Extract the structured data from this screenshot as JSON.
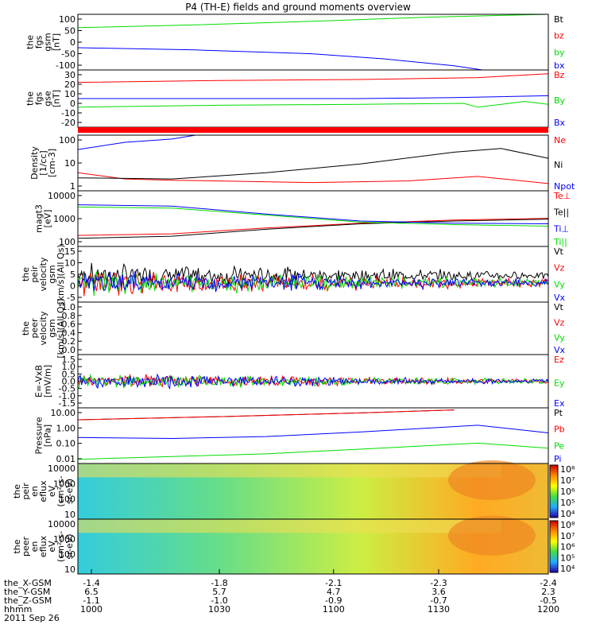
{
  "title": "P4 (TH-E) fields and ground moments overview",
  "date_label": "2011 Sep 26",
  "colors": {
    "black": "#000000",
    "red": "#ff0000",
    "green": "#00dd00",
    "blue": "#0000ff"
  },
  "chart_data": [
    {
      "type": "line",
      "id": "fgs_gsm",
      "ylabel": [
        "the",
        "fgs",
        "gsm",
        "[nT]"
      ],
      "yticks": [
        "100",
        "50",
        "0",
        "-50",
        "-100"
      ],
      "ylim": [
        -100,
        100
      ],
      "series": [
        {
          "name": "Bt",
          "color": "black",
          "values": []
        },
        {
          "name": "bz",
          "color": "red",
          "values": [
            [
              0,
              100
            ],
            [
              1,
              100
            ]
          ]
        },
        {
          "name": "by",
          "color": "green",
          "values": [
            [
              0,
              52
            ],
            [
              0.25,
              62
            ],
            [
              0.5,
              75
            ],
            [
              0.75,
              90
            ],
            [
              1,
              102
            ]
          ]
        },
        {
          "name": "bx",
          "color": "blue",
          "values": [
            [
              0,
              -20
            ],
            [
              0.25,
              -28
            ],
            [
              0.5,
              -42
            ],
            [
              0.65,
              -60
            ],
            [
              0.8,
              -85
            ],
            [
              0.86,
              -100
            ]
          ]
        }
      ]
    },
    {
      "type": "line",
      "id": "fgs_gse",
      "ylabel": [
        "the",
        "fgs",
        "gse",
        "[nT]"
      ],
      "yticks": [
        "30",
        "20",
        "10",
        "0",
        "-10",
        "-20"
      ],
      "ylim": [
        -30,
        30
      ],
      "series": [
        {
          "name": "Bz",
          "color": "red",
          "values": [
            [
              0,
              17
            ],
            [
              0.3,
              19
            ],
            [
              0.6,
              20
            ],
            [
              0.85,
              22
            ],
            [
              1,
              26
            ]
          ]
        },
        {
          "name": "By",
          "color": "green",
          "values": [
            [
              0,
              -9
            ],
            [
              0.3,
              -7
            ],
            [
              0.6,
              -6
            ],
            [
              0.82,
              -5
            ],
            [
              0.85,
              -9
            ],
            [
              0.95,
              -3
            ],
            [
              1,
              -6
            ]
          ]
        },
        {
          "name": "Bx",
          "color": "blue",
          "values": [
            [
              0,
              0
            ],
            [
              0.3,
              0
            ],
            [
              0.6,
              0
            ],
            [
              0.8,
              1
            ],
            [
              1,
              3
            ]
          ]
        }
      ]
    },
    {
      "type": "line",
      "id": "density",
      "yscale": "log",
      "ylabel": [
        "Density",
        "[1/cc]",
        "[cm-3]"
      ],
      "yticks": [
        "100",
        "10",
        "1"
      ],
      "ylim": [
        0.4,
        200
      ],
      "series": [
        {
          "name": "Ne",
          "color": "red",
          "values": [
            [
              0,
              3
            ],
            [
              0.1,
              1.5
            ],
            [
              0.2,
              1.3
            ],
            [
              0.3,
              1.2
            ],
            [
              0.5,
              1
            ],
            [
              0.7,
              1.2
            ],
            [
              0.85,
              2
            ],
            [
              1,
              0.9
            ]
          ]
        },
        {
          "name": "Ni",
          "color": "black",
          "values": [
            [
              0,
              1.7
            ],
            [
              0.2,
              1.5
            ],
            [
              0.4,
              3
            ],
            [
              0.6,
              8
            ],
            [
              0.8,
              30
            ],
            [
              0.9,
              45
            ],
            [
              1,
              15
            ]
          ]
        },
        {
          "name": "Npot",
          "color": "blue",
          "values": [
            [
              0,
              40
            ],
            [
              0.1,
              90
            ],
            [
              0.2,
              130
            ],
            [
              0.25,
              200
            ]
          ]
        }
      ]
    },
    {
      "type": "line",
      "id": "temperature",
      "yscale": "log",
      "ylabel": [
        "magt3",
        "[eV]"
      ],
      "yticks": [
        "10000",
        "1000",
        "100"
      ],
      "ylim": [
        40,
        10000
      ],
      "series": [
        {
          "name": "Te⊥",
          "color": "red",
          "values": [
            [
              0,
              120
            ],
            [
              0.2,
              140
            ],
            [
              0.4,
              250
            ],
            [
              0.6,
              400
            ],
            [
              0.8,
              550
            ],
            [
              1,
              650
            ]
          ]
        },
        {
          "name": "Te||",
          "color": "black",
          "values": [
            [
              0,
              90
            ],
            [
              0.2,
              110
            ],
            [
              0.4,
              220
            ],
            [
              0.6,
              380
            ],
            [
              0.8,
              500
            ],
            [
              1,
              600
            ]
          ]
        },
        {
          "name": "Ti⊥",
          "color": "blue",
          "values": [
            [
              0,
              2500
            ],
            [
              0.2,
              2200
            ],
            [
              0.4,
              1000
            ],
            [
              0.6,
              500
            ],
            [
              0.8,
              400
            ],
            [
              1,
              380
            ]
          ]
        },
        {
          "name": "Ti||",
          "color": "green",
          "values": [
            [
              0,
              2000
            ],
            [
              0.2,
              1800
            ],
            [
              0.4,
              900
            ],
            [
              0.6,
              450
            ],
            [
              0.8,
              350
            ],
            [
              1,
              300
            ]
          ]
        }
      ]
    },
    {
      "type": "line",
      "id": "peir_velocity",
      "ylabel": [
        "the",
        "peir",
        "velocity",
        "gsm",
        "[km/s](All Qs)"
      ],
      "yticks": [
        "15",
        "10",
        "5",
        "0",
        "-5"
      ],
      "ylim": [
        -8,
        15
      ],
      "series": [
        {
          "name": "Vt",
          "color": "black",
          "values": [
            [
              0,
              3
            ],
            [
              0.2,
              3
            ],
            [
              0.4,
              1.5
            ],
            [
              0.6,
              1
            ],
            [
              1,
              0.8
            ]
          ]
        },
        {
          "name": "Vz",
          "color": "red",
          "values": [
            [
              0,
              0
            ],
            [
              1,
              0
            ]
          ]
        },
        {
          "name": "Vy",
          "color": "green",
          "values": [
            [
              0,
              0
            ],
            [
              1,
              0
            ]
          ]
        },
        {
          "name": "Vx",
          "color": "blue",
          "values": [
            [
              0,
              0
            ],
            [
              1,
              0
            ]
          ]
        }
      ]
    },
    {
      "type": "line",
      "id": "peer_velocity",
      "ylabel": [
        "the",
        "peer",
        "velocity",
        "gsm",
        "[km/s](All Qs)"
      ],
      "yticks": [
        "1.0",
        "0.8",
        "0.6",
        "0.4",
        "0.2",
        "0.0"
      ],
      "ylim": [
        0,
        1
      ],
      "series": [
        {
          "name": "Vt",
          "color": "black",
          "values": []
        },
        {
          "name": "Vz",
          "color": "red",
          "values": []
        },
        {
          "name": "Vy",
          "color": "green",
          "values": []
        },
        {
          "name": "Vx",
          "color": "blue",
          "values": []
        }
      ]
    },
    {
      "type": "line",
      "id": "efield",
      "ylabel": [
        "E=-VxB",
        "[mV/m]"
      ],
      "yticks": [
        "1.5",
        "1.0",
        "0.5",
        "0.0",
        "-0.5",
        "-1.0",
        "-1.5"
      ],
      "ylim": [
        -1.5,
        1.5
      ],
      "series": [
        {
          "name": "Ez",
          "color": "red",
          "values": [
            [
              0,
              0
            ],
            [
              1,
              0
            ]
          ]
        },
        {
          "name": "Ey",
          "color": "green",
          "values": [
            [
              0,
              0
            ],
            [
              1,
              0
            ]
          ]
        },
        {
          "name": "Ex",
          "color": "blue",
          "values": [
            [
              0,
              0
            ],
            [
              1,
              0
            ]
          ]
        }
      ]
    },
    {
      "type": "line",
      "id": "pressure",
      "yscale": "log",
      "ylabel": [
        "Pressure",
        "[nPa]"
      ],
      "yticks": [
        "10.00",
        "1.00",
        "0.10",
        "0.01"
      ],
      "ylim": [
        0.007,
        30
      ],
      "series": [
        {
          "name": "Pt",
          "color": "black",
          "values": [
            [
              0,
              5
            ],
            [
              0.3,
              8
            ],
            [
              0.6,
              14
            ],
            [
              0.8,
              22
            ]
          ]
        },
        {
          "name": "Pb",
          "color": "red",
          "values": [
            [
              0,
              5
            ],
            [
              0.3,
              8
            ],
            [
              0.6,
              14
            ],
            [
              0.8,
              22
            ]
          ]
        },
        {
          "name": "Pe",
          "color": "green",
          "values": [
            [
              0,
              0.013
            ],
            [
              0.2,
              0.02
            ],
            [
              0.4,
              0.03
            ],
            [
              0.6,
              0.06
            ],
            [
              0.85,
              0.15
            ],
            [
              1,
              0.07
            ]
          ]
        },
        {
          "name": "Pi",
          "color": "blue",
          "values": [
            [
              0,
              0.35
            ],
            [
              0.2,
              0.3
            ],
            [
              0.4,
              0.4
            ],
            [
              0.6,
              0.8
            ],
            [
              0.85,
              2.2
            ],
            [
              1,
              0.7
            ]
          ]
        }
      ]
    },
    {
      "type": "heatmap",
      "id": "peir_spec",
      "ylabel": [
        "the",
        "peir",
        "en",
        "eflux",
        "eV",
        "(cm²-s-",
        "sr-eV)"
      ],
      "yticks": [
        "10000",
        "1000",
        "100",
        "10"
      ],
      "colorbar": [
        "10⁸",
        "10⁷",
        "10⁶",
        "10⁵",
        "10⁴"
      ]
    },
    {
      "type": "heatmap",
      "id": "peer_spec",
      "ylabel": [
        "the",
        "peer",
        "en",
        "eflux",
        "eV",
        "(cm²-s-",
        "sr-eV)"
      ],
      "yticks": [
        "10000",
        "1000",
        "100",
        "10"
      ],
      "colorbar": [
        "10⁸",
        "10⁷",
        "10⁶",
        "10⁵",
        "10⁴"
      ]
    }
  ],
  "xaxis": {
    "rows": [
      {
        "label": "the_X-GSM",
        "values": [
          "-1.4",
          "-1.8",
          "-2.1",
          "-2.3",
          "-2.4"
        ]
      },
      {
        "label": "the_Y-GSM",
        "values": [
          "6.5",
          "5.7",
          "4.7",
          "3.6",
          "2.3"
        ]
      },
      {
        "label": "the_Z-GSM",
        "values": [
          "-1.1",
          "-1.0",
          "-0.9",
          "-0.7",
          "-0.5"
        ]
      },
      {
        "label": "hhmm",
        "values": [
          "1000",
          "1030",
          "1100",
          "1130",
          "1200"
        ]
      }
    ]
  }
}
